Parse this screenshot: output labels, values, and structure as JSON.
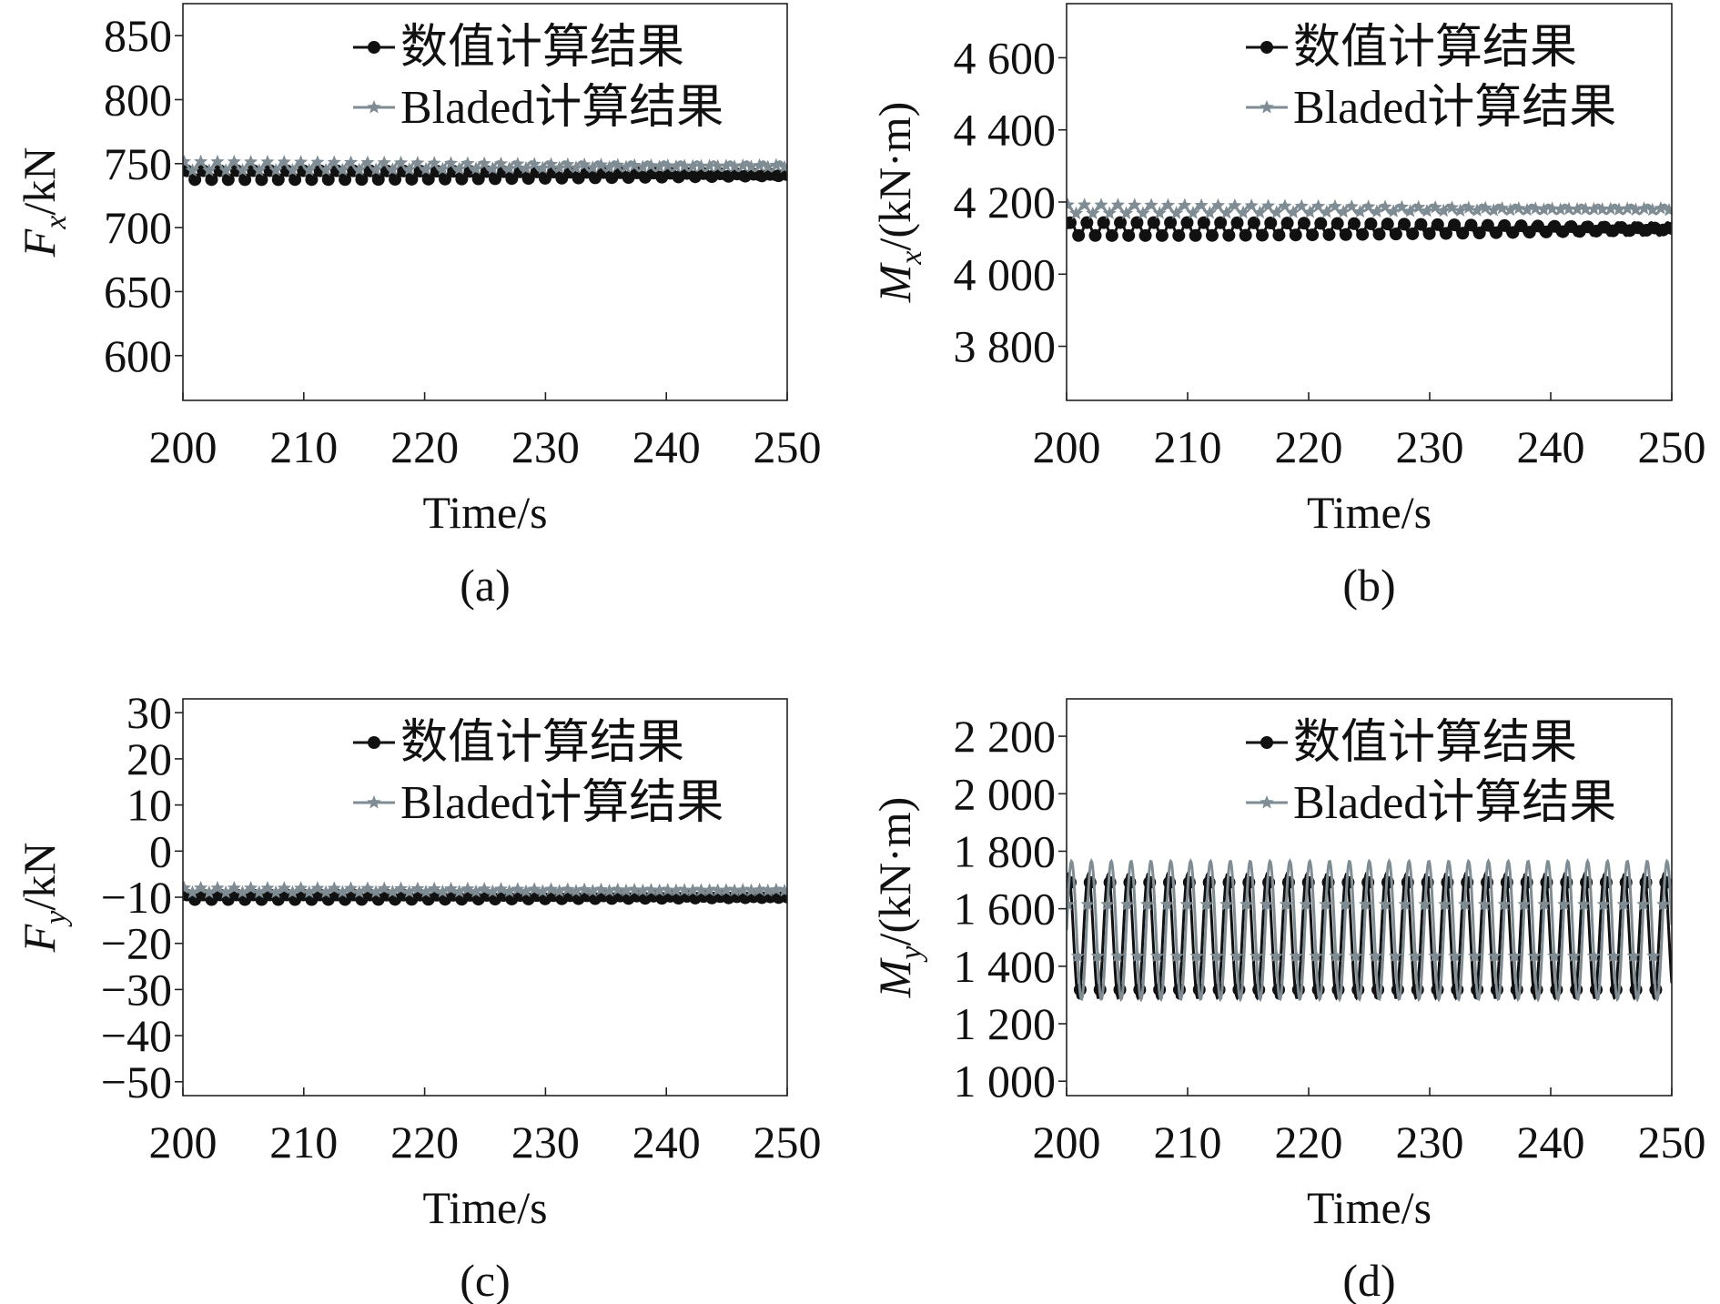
{
  "colors": {
    "numeric_series": "#111111",
    "bladed_series": "#7f8c93",
    "axis": "#222222",
    "background": "#ffffff"
  },
  "chart_data": [
    {
      "panel": "a",
      "caption": "(a)",
      "type": "line",
      "xlabel": "Time/s",
      "ylabel_symbol": "F",
      "ylabel_subscript": "x",
      "ylabel_unit": "/kN",
      "xlim": [
        200,
        250
      ],
      "ylim": [
        565,
        875
      ],
      "xticks": [
        200,
        210,
        220,
        230,
        240,
        250
      ],
      "xtick_labels": [
        "200",
        "210",
        "220",
        "230",
        "240",
        "250"
      ],
      "yticks": [
        600,
        650,
        700,
        750,
        800,
        850
      ],
      "ytick_labels": [
        "600",
        "650",
        "700",
        "750",
        "800",
        "850"
      ],
      "legend_position": "top-right",
      "series": [
        {
          "name": "数值计算结果",
          "marker": "circle",
          "mean": 741,
          "amplitude": 3.5,
          "period_s": 1.37,
          "phase": 0.0,
          "marker_step_s": 0.69
        },
        {
          "name": "Bladed计算结果",
          "marker": "star",
          "mean": 748,
          "amplitude": 3.5,
          "period_s": 1.37,
          "phase": 0.2,
          "marker_step_s": 0.69
        }
      ]
    },
    {
      "panel": "b",
      "caption": "(b)",
      "type": "line",
      "xlabel": "Time/s",
      "ylabel_symbol": "M",
      "ylabel_subscript": "x",
      "ylabel_unit": "/(kN·m)",
      "xlim": [
        200,
        250
      ],
      "ylim": [
        3650,
        4750
      ],
      "xticks": [
        200,
        210,
        220,
        230,
        240,
        250
      ],
      "xtick_labels": [
        "200",
        "210",
        "220",
        "230",
        "240",
        "250"
      ],
      "yticks": [
        3800,
        4000,
        4200,
        4400,
        4600
      ],
      "ytick_labels": [
        "3 800",
        "4 000",
        "4 200",
        "4 400",
        "4 600"
      ],
      "legend_position": "top-right",
      "series": [
        {
          "name": "数值计算结果",
          "marker": "circle",
          "mean": 4125,
          "amplitude": 18,
          "period_s": 1.37,
          "phase": 0.0,
          "marker_step_s": 0.69
        },
        {
          "name": "Bladed计算结果",
          "marker": "star",
          "mean": 4180,
          "amplitude": 12,
          "period_s": 1.37,
          "phase": 0.2,
          "marker_step_s": 0.69
        }
      ]
    },
    {
      "panel": "c",
      "caption": "(c)",
      "type": "line",
      "xlabel": "Time/s",
      "ylabel_symbol": "F",
      "ylabel_subscript": "y",
      "ylabel_unit": "/kN",
      "xlim": [
        200,
        250
      ],
      "ylim": [
        -53,
        33
      ],
      "xticks": [
        200,
        210,
        220,
        230,
        240,
        250
      ],
      "xtick_labels": [
        "200",
        "210",
        "220",
        "230",
        "240",
        "250"
      ],
      "yticks": [
        -50,
        -40,
        -30,
        -20,
        -10,
        0,
        10,
        20,
        30
      ],
      "ytick_labels": [
        "−50",
        "−40",
        "−30",
        "−20",
        "−10",
        "0",
        "10",
        "20",
        "30"
      ],
      "legend_position": "top-right",
      "series": [
        {
          "name": "数值计算结果",
          "marker": "circle",
          "mean": -10,
          "amplitude": 0.5,
          "period_s": 1.37,
          "phase": 0.0,
          "marker_step_s": 0.69
        },
        {
          "name": "Bladed计算结果",
          "marker": "star",
          "mean": -8.5,
          "amplitude": 0.5,
          "period_s": 1.37,
          "phase": 0.2,
          "marker_step_s": 0.69
        }
      ]
    },
    {
      "panel": "d",
      "caption": "(d)",
      "type": "line",
      "xlabel": "Time/s",
      "ylabel_symbol": "M",
      "ylabel_subscript": "y",
      "ylabel_unit": "/(kN·m)",
      "xlim": [
        200,
        250
      ],
      "ylim": [
        950,
        2330
      ],
      "xticks": [
        200,
        210,
        220,
        230,
        240,
        250
      ],
      "xtick_labels": [
        "200",
        "210",
        "220",
        "230",
        "240",
        "250"
      ],
      "yticks": [
        1000,
        1200,
        1400,
        1600,
        1800,
        2000,
        2200
      ],
      "ytick_labels": [
        "1 000",
        "1 200",
        "1 400",
        "1 600",
        "1 800",
        "2 000",
        "2 200"
      ],
      "legend_position": "top-right",
      "series": [
        {
          "name": "数值计算结果",
          "marker": "circle",
          "mean": 1505,
          "amplitude": 215,
          "period_s": 1.64,
          "phase": 0.15,
          "marker_step_s": 0.82
        },
        {
          "name": "Bladed计算结果",
          "marker": "star",
          "mean": 1525,
          "amplitude": 240,
          "period_s": 1.64,
          "phase": 0.0,
          "marker_step_s": 0.82
        }
      ]
    }
  ]
}
